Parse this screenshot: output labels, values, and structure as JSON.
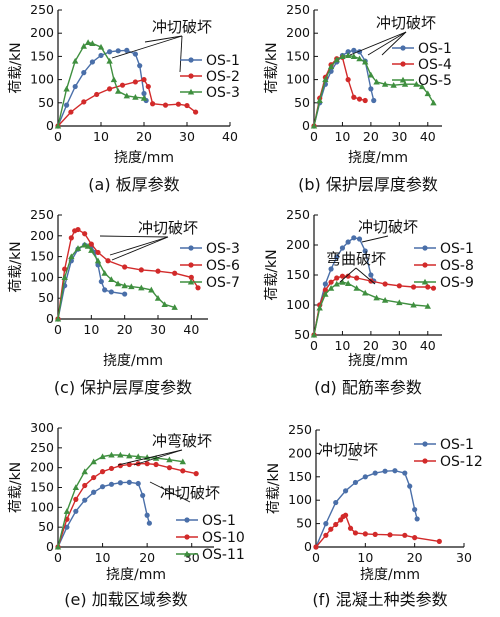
{
  "figure": {
    "background": "#ffffff",
    "colors": {
      "blue": "#4a6fa9",
      "red": "#d22a2a",
      "green": "#3f8f3f",
      "axis": "#111111"
    },
    "panels": [
      {
        "id": "a",
        "caption": "(a) 板厚参数",
        "xlabel": "挠度/mm",
        "ylabel": "荷载/kN",
        "annotations": [
          "冲切破坏"
        ]
      },
      {
        "id": "b",
        "caption": "(b) 保护层厚度参数",
        "xlabel": "挠度/mm",
        "ylabel": "荷载/kN",
        "annotations": [
          "冲切破坏"
        ]
      },
      {
        "id": "c",
        "caption": "(c) 保护层厚度参数",
        "xlabel": "挠度/mm",
        "ylabel": "荷载/kN",
        "annotations": [
          "冲切破坏"
        ]
      },
      {
        "id": "d",
        "caption": "(d) 配筋率参数",
        "xlabel": "挠度/mm",
        "ylabel": "荷载/kN",
        "annotations": [
          "冲切破坏",
          "弯曲破坏"
        ]
      },
      {
        "id": "e",
        "caption": "(e) 加载区域参数",
        "xlabel": "挠度/mm",
        "ylabel": "荷载/kN",
        "annotations": [
          "冲弯破坏",
          "冲切破坏"
        ]
      },
      {
        "id": "f",
        "caption": "(f) 混凝土种类参数",
        "xlabel": "挠度/mm",
        "ylabel": "荷载/kN",
        "annotations": [
          "冲切破坏"
        ]
      }
    ]
  },
  "chart_data": [
    {
      "type": "line",
      "panel": "a",
      "title": "",
      "xlabel": "挠度/mm",
      "ylabel": "荷载/kN",
      "xlim": [
        0,
        40
      ],
      "ylim": [
        0,
        250
      ],
      "xticks": [
        0,
        10,
        20,
        30,
        40
      ],
      "yticks": [
        0,
        50,
        100,
        150,
        200,
        250
      ],
      "legend": "right",
      "series": [
        {
          "name": "OS-1",
          "color": "#4a6fa9",
          "marker": "circle",
          "x": [
            0,
            2,
            4,
            6,
            8,
            10,
            12,
            14,
            16,
            18,
            19,
            20,
            20.5
          ],
          "y": [
            0,
            45,
            85,
            115,
            138,
            152,
            160,
            162,
            163,
            155,
            130,
            70,
            55
          ]
        },
        {
          "name": "OS-2",
          "color": "#d22a2a",
          "marker": "circle",
          "x": [
            0,
            3,
            6,
            9,
            12,
            15,
            18,
            20,
            21,
            22,
            25,
            28,
            30,
            32
          ],
          "y": [
            0,
            30,
            52,
            68,
            80,
            88,
            95,
            100,
            85,
            48,
            45,
            47,
            44,
            30
          ]
        },
        {
          "name": "OS-3",
          "color": "#3f8f3f",
          "marker": "triangle",
          "x": [
            0,
            2,
            4,
            6,
            7,
            8,
            10,
            12,
            13,
            14,
            16,
            18,
            20
          ],
          "y": [
            0,
            80,
            140,
            172,
            180,
            178,
            170,
            140,
            100,
            75,
            65,
            62,
            60
          ]
        }
      ]
    },
    {
      "type": "line",
      "panel": "b",
      "title": "",
      "xlabel": "挠度/mm",
      "ylabel": "荷载/kN",
      "xlim": [
        0,
        45
      ],
      "ylim": [
        0,
        250
      ],
      "xticks": [
        0,
        10,
        20,
        30,
        40
      ],
      "yticks": [
        0,
        50,
        100,
        150,
        200,
        250
      ],
      "legend": "right",
      "series": [
        {
          "name": "OS-1",
          "color": "#4a6fa9",
          "marker": "circle",
          "x": [
            0,
            2,
            4,
            6,
            8,
            10,
            12,
            14,
            16,
            18,
            20,
            21
          ],
          "y": [
            0,
            50,
            90,
            118,
            138,
            152,
            160,
            163,
            160,
            140,
            80,
            55
          ]
        },
        {
          "name": "OS-4",
          "color": "#d22a2a",
          "marker": "circle",
          "x": [
            0,
            2,
            4,
            6,
            8,
            10,
            12,
            14,
            16,
            18
          ],
          "y": [
            0,
            60,
            105,
            132,
            145,
            148,
            100,
            62,
            58,
            55
          ]
        },
        {
          "name": "OS-5",
          "color": "#3f8f3f",
          "marker": "triangle",
          "x": [
            0,
            2,
            4,
            6,
            8,
            10,
            12,
            14,
            16,
            18,
            20,
            22,
            25,
            28,
            32,
            36,
            38,
            40,
            42
          ],
          "y": [
            0,
            55,
            100,
            128,
            143,
            150,
            152,
            150,
            145,
            138,
            110,
            95,
            90,
            88,
            90,
            90,
            85,
            70,
            50
          ]
        }
      ]
    },
    {
      "type": "line",
      "panel": "c",
      "title": "",
      "xlabel": "挠度/mm",
      "ylabel": "荷载/kN",
      "xlim": [
        0,
        45
      ],
      "ylim": [
        0,
        250
      ],
      "xticks": [
        0,
        10,
        20,
        30,
        40
      ],
      "yticks": [
        0,
        50,
        100,
        150,
        200,
        250
      ],
      "legend": "right",
      "series": [
        {
          "name": "OS-3",
          "color": "#4a6fa9",
          "marker": "circle",
          "x": [
            0,
            2,
            4,
            6,
            8,
            10,
            11,
            12,
            13,
            14,
            16,
            20
          ],
          "y": [
            0,
            80,
            140,
            168,
            178,
            175,
            160,
            130,
            90,
            70,
            65,
            60
          ]
        },
        {
          "name": "OS-6",
          "color": "#d22a2a",
          "marker": "circle",
          "x": [
            0,
            2,
            4,
            5,
            6,
            8,
            10,
            12,
            15,
            20,
            25,
            30,
            35,
            40,
            42
          ],
          "y": [
            0,
            120,
            195,
            212,
            215,
            205,
            180,
            160,
            140,
            125,
            118,
            115,
            110,
            100,
            75
          ]
        },
        {
          "name": "OS-7",
          "color": "#3f8f3f",
          "marker": "triangle",
          "x": [
            0,
            2,
            4,
            6,
            8,
            9,
            10,
            12,
            14,
            16,
            18,
            20,
            22,
            25,
            28,
            30,
            32,
            35
          ],
          "y": [
            0,
            100,
            150,
            170,
            178,
            175,
            165,
            140,
            110,
            95,
            85,
            80,
            78,
            75,
            70,
            50,
            35,
            28
          ]
        }
      ]
    },
    {
      "type": "line",
      "panel": "d",
      "title": "",
      "xlabel": "挠度/mm",
      "ylabel": "荷载/kN",
      "xlim": [
        0,
        45
      ],
      "ylim": [
        50,
        250
      ],
      "xticks": [
        0,
        10,
        20,
        30,
        40
      ],
      "yticks": [
        50,
        100,
        150,
        200,
        250
      ],
      "legend": "right",
      "series": [
        {
          "name": "OS-1",
          "color": "#4a6fa9",
          "marker": "circle",
          "x": [
            0,
            2,
            4,
            6,
            8,
            10,
            12,
            14,
            16,
            18,
            20,
            21
          ],
          "y": [
            50,
            100,
            135,
            160,
            180,
            195,
            205,
            212,
            210,
            190,
            150,
            140
          ]
        },
        {
          "name": "OS-8",
          "color": "#d22a2a",
          "marker": "circle",
          "x": [
            0,
            2,
            4,
            6,
            8,
            10,
            12,
            15,
            20,
            25,
            30,
            35,
            40,
            42
          ],
          "y": [
            50,
            100,
            125,
            138,
            145,
            148,
            148,
            145,
            140,
            135,
            132,
            130,
            130,
            128
          ]
        },
        {
          "name": "OS-9",
          "color": "#3f8f3f",
          "marker": "triangle",
          "x": [
            0,
            2,
            4,
            6,
            8,
            10,
            12,
            15,
            18,
            22,
            25,
            30,
            35,
            40
          ],
          "y": [
            50,
            95,
            118,
            128,
            135,
            138,
            136,
            128,
            120,
            112,
            108,
            104,
            100,
            98
          ]
        }
      ]
    },
    {
      "type": "line",
      "panel": "e",
      "title": "",
      "xlabel": "挠度/mm",
      "ylabel": "荷载/kN",
      "xlim": [
        0,
        35
      ],
      "ylim": [
        0,
        300
      ],
      "xticks": [
        0,
        10,
        20,
        30
      ],
      "yticks": [
        0,
        50,
        100,
        150,
        200,
        250,
        300
      ],
      "legend": "right",
      "series": [
        {
          "name": "OS-1",
          "color": "#4a6fa9",
          "marker": "circle",
          "x": [
            0,
            2,
            4,
            6,
            8,
            10,
            12,
            14,
            16,
            18,
            19,
            20,
            20.5
          ],
          "y": [
            0,
            50,
            90,
            118,
            138,
            152,
            158,
            162,
            163,
            160,
            130,
            80,
            60
          ]
        },
        {
          "name": "OS-10",
          "color": "#d22a2a",
          "marker": "circle",
          "x": [
            0,
            2,
            4,
            6,
            8,
            10,
            12,
            14,
            16,
            18,
            20,
            22,
            25,
            28,
            31
          ],
          "y": [
            0,
            70,
            120,
            155,
            175,
            190,
            198,
            205,
            208,
            210,
            210,
            208,
            200,
            192,
            185
          ]
        },
        {
          "name": "OS-11",
          "color": "#3f8f3f",
          "marker": "triangle",
          "x": [
            0,
            2,
            4,
            6,
            8,
            10,
            12,
            14,
            16,
            18,
            20,
            22,
            25,
            28
          ],
          "y": [
            0,
            90,
            150,
            190,
            215,
            228,
            232,
            232,
            230,
            228,
            226,
            224,
            220,
            215
          ]
        }
      ]
    },
    {
      "type": "line",
      "panel": "f",
      "title": "",
      "xlabel": "挠度/mm",
      "ylabel": "荷载/kN",
      "xlim": [
        0,
        30
      ],
      "ylim": [
        0,
        250
      ],
      "xticks": [
        0,
        10,
        20,
        30
      ],
      "yticks": [
        0,
        50,
        100,
        150,
        200,
        250
      ],
      "legend": "top-right",
      "series": [
        {
          "name": "OS-1",
          "color": "#4a6fa9",
          "marker": "circle",
          "x": [
            0,
            2,
            4,
            6,
            8,
            10,
            12,
            14,
            16,
            18,
            19,
            20,
            20.5
          ],
          "y": [
            0,
            50,
            95,
            120,
            138,
            150,
            158,
            162,
            163,
            158,
            130,
            80,
            60
          ]
        },
        {
          "name": "OS-12",
          "color": "#d22a2a",
          "marker": "circle",
          "x": [
            0,
            2,
            3,
            4,
            5,
            5.5,
            6,
            7,
            8,
            10,
            12,
            15,
            18,
            20,
            25
          ],
          "y": [
            0,
            25,
            38,
            48,
            58,
            65,
            68,
            40,
            30,
            28,
            27,
            26,
            25,
            20,
            12
          ]
        }
      ]
    }
  ]
}
